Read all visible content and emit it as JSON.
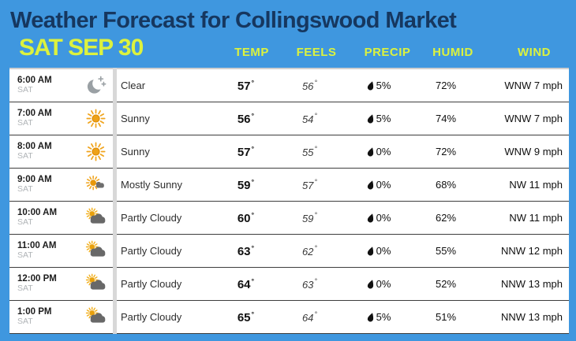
{
  "header": {
    "title": "Weather Forecast for Collingswood Market",
    "date": "SAT SEP 30",
    "columns": [
      "TEMP",
      "FEELS",
      "PRECIP",
      "HUMID",
      "WIND"
    ]
  },
  "colors": {
    "background": "#3F97DF",
    "accent_yellow": "#DCF23E",
    "title_navy": "#16375F"
  },
  "rows": [
    {
      "time": "6:00 AM",
      "day": "SAT",
      "icon": "clear-night-icon",
      "condition": "Clear",
      "temp": "57",
      "feels": "56",
      "precip": "5%",
      "humidity": "72%",
      "wind": "WNW 7 mph"
    },
    {
      "time": "7:00 AM",
      "day": "SAT",
      "icon": "sunny-icon",
      "condition": "Sunny",
      "temp": "56",
      "feels": "54",
      "precip": "5%",
      "humidity": "74%",
      "wind": "WNW 7 mph"
    },
    {
      "time": "8:00 AM",
      "day": "SAT",
      "icon": "sunny-icon",
      "condition": "Sunny",
      "temp": "57",
      "feels": "55",
      "precip": "0%",
      "humidity": "72%",
      "wind": "WNW 9 mph"
    },
    {
      "time": "9:00 AM",
      "day": "SAT",
      "icon": "mostly-sunny-icon",
      "condition": "Mostly Sunny",
      "temp": "59",
      "feels": "57",
      "precip": "0%",
      "humidity": "68%",
      "wind": "NW 11 mph"
    },
    {
      "time": "10:00 AM",
      "day": "SAT",
      "icon": "partly-cloudy-icon",
      "condition": "Partly Cloudy",
      "temp": "60",
      "feels": "59",
      "precip": "0%",
      "humidity": "62%",
      "wind": "NW 11 mph"
    },
    {
      "time": "11:00 AM",
      "day": "SAT",
      "icon": "partly-cloudy-icon",
      "condition": "Partly Cloudy",
      "temp": "63",
      "feels": "62",
      "precip": "0%",
      "humidity": "55%",
      "wind": "NNW 12 mph"
    },
    {
      "time": "12:00 PM",
      "day": "SAT",
      "icon": "partly-cloudy-icon",
      "condition": "Partly Cloudy",
      "temp": "64",
      "feels": "63",
      "precip": "0%",
      "humidity": "52%",
      "wind": "NNW 13 mph"
    },
    {
      "time": "1:00 PM",
      "day": "SAT",
      "icon": "partly-cloudy-icon",
      "condition": "Partly Cloudy",
      "temp": "65",
      "feels": "64",
      "precip": "5%",
      "humidity": "51%",
      "wind": "NNW 13 mph"
    }
  ]
}
